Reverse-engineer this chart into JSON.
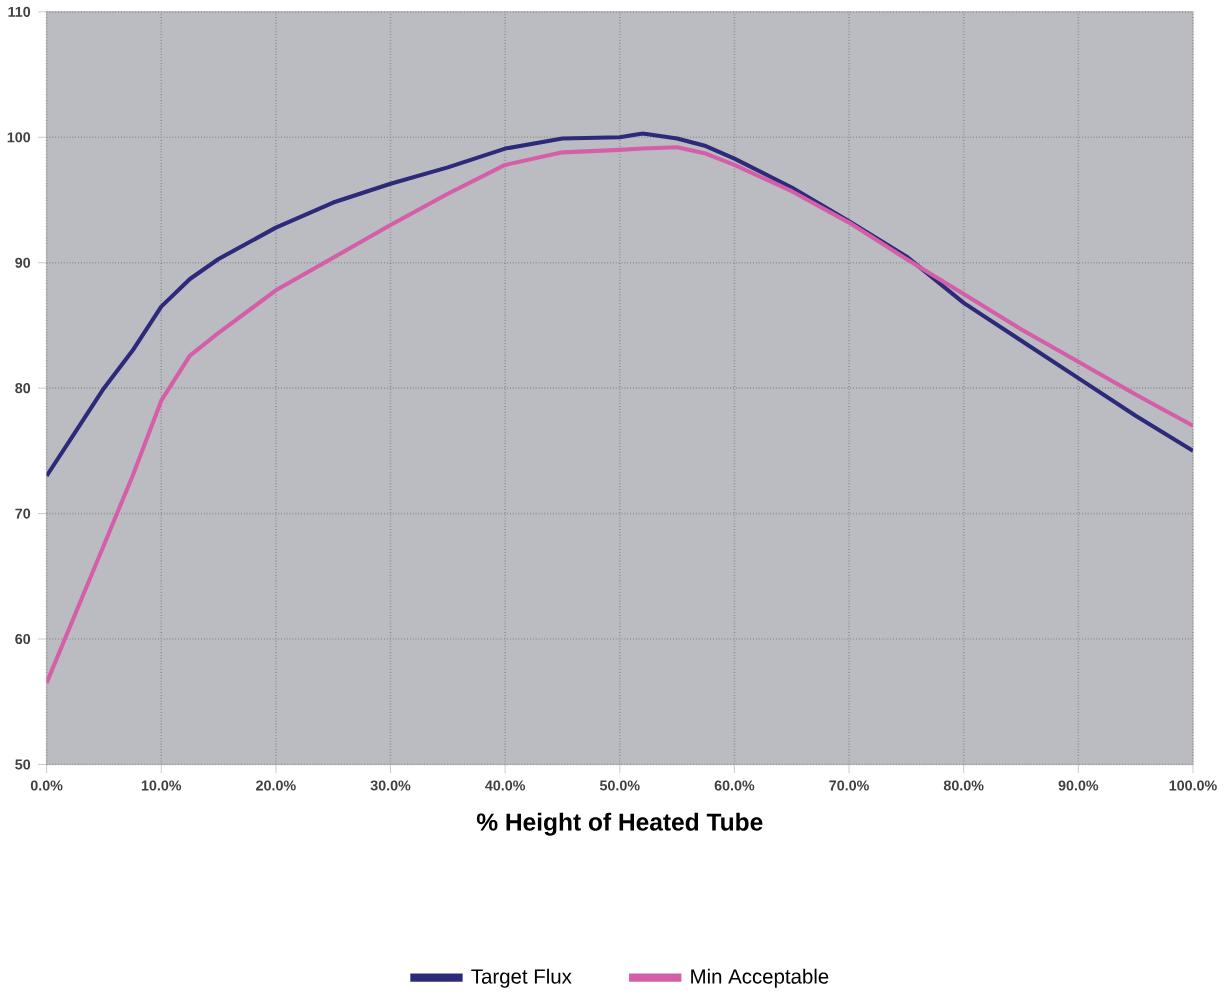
{
  "chart_data": {
    "type": "line",
    "xlabel": "% Height of Heated Tube",
    "x": [
      0,
      2.5,
      5,
      7.5,
      10,
      12.5,
      15,
      20,
      25,
      30,
      35,
      40,
      45,
      50,
      52,
      55,
      57.5,
      60,
      65,
      70,
      75,
      80,
      85,
      90,
      95,
      100
    ],
    "series": [
      {
        "name": "Target Flux",
        "color": "#2e2a7a",
        "values": [
          73,
          76.5,
          80,
          83,
          86.5,
          88.7,
          90.3,
          92.8,
          94.8,
          96.3,
          97.6,
          99.1,
          99.9,
          100,
          100.3,
          99.9,
          99.3,
          98.3,
          96,
          93.3,
          90.5,
          86.8,
          83.8,
          80.8,
          77.8,
          75
        ]
      },
      {
        "name": "Min Acceptable",
        "color": "#d45fa8",
        "values": [
          56.5,
          62,
          67.5,
          73,
          79,
          82.6,
          84.4,
          87.8,
          90.4,
          93,
          95.5,
          97.8,
          98.8,
          99,
          99.1,
          99.2,
          98.7,
          97.8,
          95.7,
          93.2,
          90.3,
          87.5,
          84.7,
          82.1,
          79.5,
          77
        ]
      }
    ],
    "xlim": [
      0,
      100
    ],
    "ylim": [
      50,
      110
    ],
    "xticks": [
      {
        "value": 0,
        "label": "0.0%"
      },
      {
        "value": 10,
        "label": "10.0%"
      },
      {
        "value": 20,
        "label": "20.0%"
      },
      {
        "value": 30,
        "label": "30.0%"
      },
      {
        "value": 40,
        "label": "40.0%"
      },
      {
        "value": 50,
        "label": "50.0%"
      },
      {
        "value": 60,
        "label": "60.0%"
      },
      {
        "value": 70,
        "label": "70.0%"
      },
      {
        "value": 80,
        "label": "80.0%"
      },
      {
        "value": 90,
        "label": "90.0%"
      },
      {
        "value": 100,
        "label": "100.0%"
      }
    ],
    "yticks": [
      50,
      60,
      70,
      80,
      90,
      100,
      110
    ],
    "grid": true,
    "legend": "bottom",
    "line_style": "solid",
    "marker": "none"
  }
}
